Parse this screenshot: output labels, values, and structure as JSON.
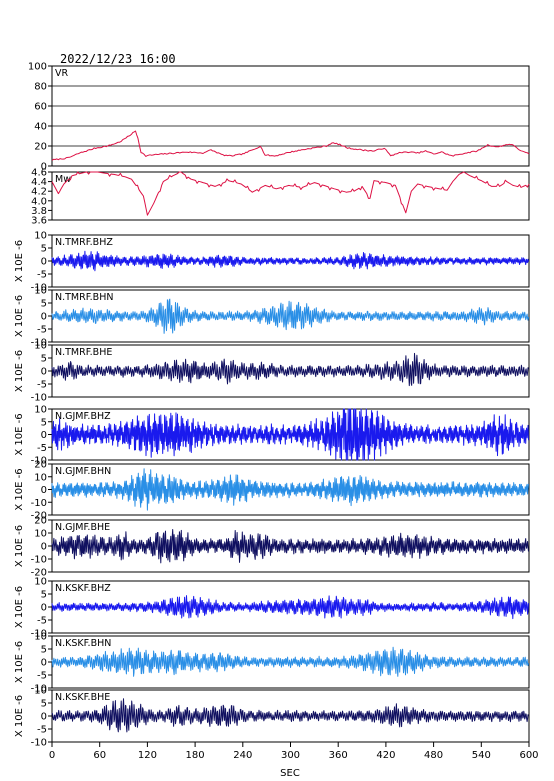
{
  "header": {
    "timestamp": "2022/12/23 16:00"
  },
  "colors": {
    "vr": "#dd1144",
    "mw": "#dd1144",
    "bhz": "#1a1aee",
    "bhn": "#2a8fe6",
    "bhe": "#101060",
    "axis": "#000000"
  },
  "chart_data": {
    "type": "line",
    "xlabel": "SEC",
    "xlim": [
      0,
      600
    ],
    "xticks": [
      0,
      60,
      120,
      180,
      240,
      300,
      360,
      420,
      480,
      540,
      600
    ],
    "panels": [
      {
        "label": "VR",
        "kind": "vr",
        "ylim": [
          0,
          100
        ],
        "yticks": [
          0,
          20,
          40,
          60,
          80,
          100
        ],
        "ylabel": "",
        "color": "vr",
        "points": [
          [
            0,
            6
          ],
          [
            20,
            8
          ],
          [
            35,
            13
          ],
          [
            55,
            18
          ],
          [
            70,
            20
          ],
          [
            85,
            24
          ],
          [
            95,
            29
          ],
          [
            100,
            32
          ],
          [
            105,
            35
          ],
          [
            108,
            28
          ],
          [
            112,
            14
          ],
          [
            118,
            10
          ],
          [
            125,
            11
          ],
          [
            140,
            12
          ],
          [
            155,
            13
          ],
          [
            170,
            14
          ],
          [
            190,
            13
          ],
          [
            200,
            16
          ],
          [
            215,
            11
          ],
          [
            225,
            10
          ],
          [
            240,
            12
          ],
          [
            255,
            17
          ],
          [
            262,
            20
          ],
          [
            268,
            11
          ],
          [
            280,
            10
          ],
          [
            300,
            14
          ],
          [
            320,
            17
          ],
          [
            345,
            20
          ],
          [
            352,
            23
          ],
          [
            360,
            22
          ],
          [
            372,
            18
          ],
          [
            390,
            16
          ],
          [
            405,
            15
          ],
          [
            418,
            18
          ],
          [
            426,
            10
          ],
          [
            435,
            13
          ],
          [
            448,
            14
          ],
          [
            460,
            13
          ],
          [
            470,
            15
          ],
          [
            480,
            12
          ],
          [
            490,
            14
          ],
          [
            503,
            10
          ],
          [
            520,
            13
          ],
          [
            535,
            15
          ],
          [
            548,
            21
          ],
          [
            560,
            19
          ],
          [
            575,
            22
          ],
          [
            582,
            20
          ],
          [
            590,
            15
          ],
          [
            600,
            12
          ]
        ]
      },
      {
        "label": "Mw",
        "kind": "mw",
        "ylim": [
          3.6,
          4.6
        ],
        "yticks": [
          3.6,
          3.8,
          4.0,
          4.2,
          4.4,
          4.6
        ],
        "ylabel": "",
        "color": "mw",
        "points": [
          [
            0,
            4.4
          ],
          [
            8,
            4.15
          ],
          [
            15,
            4.35
          ],
          [
            25,
            4.52
          ],
          [
            38,
            4.58
          ],
          [
            50,
            4.62
          ],
          [
            65,
            4.58
          ],
          [
            78,
            4.55
          ],
          [
            92,
            4.5
          ],
          [
            100,
            4.45
          ],
          [
            115,
            4.1
          ],
          [
            120,
            3.7
          ],
          [
            128,
            3.95
          ],
          [
            140,
            4.4
          ],
          [
            152,
            4.52
          ],
          [
            162,
            4.6
          ],
          [
            175,
            4.45
          ],
          [
            190,
            4.38
          ],
          [
            205,
            4.3
          ],
          [
            222,
            4.42
          ],
          [
            238,
            4.35
          ],
          [
            252,
            4.18
          ],
          [
            268,
            4.32
          ],
          [
            282,
            4.25
          ],
          [
            298,
            4.32
          ],
          [
            315,
            4.28
          ],
          [
            330,
            4.38
          ],
          [
            342,
            4.32
          ],
          [
            355,
            4.25
          ],
          [
            370,
            4.18
          ],
          [
            380,
            4.2
          ],
          [
            390,
            4.3
          ],
          [
            400,
            4.05
          ],
          [
            405,
            4.42
          ],
          [
            420,
            4.38
          ],
          [
            432,
            4.32
          ],
          [
            445,
            3.75
          ],
          [
            452,
            4.2
          ],
          [
            460,
            4.35
          ],
          [
            472,
            4.3
          ],
          [
            484,
            4.26
          ],
          [
            497,
            4.22
          ],
          [
            504,
            4.4
          ],
          [
            512,
            4.55
          ],
          [
            518,
            4.6
          ],
          [
            526,
            4.52
          ],
          [
            540,
            4.42
          ],
          [
            553,
            4.3
          ],
          [
            563,
            4.3
          ],
          [
            572,
            4.4
          ],
          [
            580,
            4.32
          ],
          [
            590,
            4.28
          ],
          [
            600,
            4.35
          ]
        ]
      },
      {
        "label": "N.TMRF.BHZ",
        "kind": "wave",
        "ylim": [
          -10,
          10
        ],
        "yticks": [
          -10,
          -5,
          0,
          5,
          10
        ],
        "ylabel": "X 10E -6",
        "color": "bhz",
        "amplitude": 2.0,
        "freq": 0.52,
        "seed": 11
      },
      {
        "label": "N.TMRF.BHN",
        "kind": "wave",
        "ylim": [
          -10,
          10
        ],
        "yticks": [
          -10,
          -5,
          0,
          5,
          10
        ],
        "ylabel": "X 10E -6",
        "color": "bhn",
        "amplitude": 2.6,
        "freq": 0.4,
        "seed": 23
      },
      {
        "label": "N.TMRF.BHE",
        "kind": "wave",
        "ylim": [
          -10,
          10
        ],
        "yticks": [
          -10,
          -5,
          0,
          5,
          10
        ],
        "ylabel": "X 10E -6",
        "color": "bhe",
        "amplitude": 3.2,
        "freq": 0.36,
        "seed": 37
      },
      {
        "label": "N.GJMF.BHZ",
        "kind": "wave",
        "ylim": [
          -10,
          10
        ],
        "yticks": [
          -10,
          -5,
          0,
          5,
          10
        ],
        "ylabel": "X 10E -6",
        "color": "bhz",
        "amplitude": 5.5,
        "freq": 0.62,
        "seed": 41
      },
      {
        "label": "N.GJMF.BHN",
        "kind": "wave",
        "ylim": [
          -20,
          20
        ],
        "yticks": [
          -20,
          -10,
          0,
          10,
          20
        ],
        "ylabel": "X 10E -6",
        "color": "bhn",
        "amplitude": 8.5,
        "freq": 0.56,
        "seed": 53
      },
      {
        "label": "N.GJMF.BHE",
        "kind": "wave",
        "ylim": [
          -20,
          20
        ],
        "yticks": [
          -20,
          -10,
          0,
          10,
          20
        ],
        "ylabel": "X 10E -6",
        "color": "bhe",
        "amplitude": 8.0,
        "freq": 0.44,
        "seed": 67
      },
      {
        "label": "N.KSKF.BHZ",
        "kind": "wave",
        "ylim": [
          -10,
          10
        ],
        "yticks": [
          -10,
          -5,
          0,
          5,
          10
        ],
        "ylabel": "X 10E -6",
        "color": "bhz",
        "amplitude": 2.4,
        "freq": 0.46,
        "seed": 71
      },
      {
        "label": "N.KSKF.BHN",
        "kind": "wave",
        "ylim": [
          -10,
          10
        ],
        "yticks": [
          -10,
          -5,
          0,
          5,
          10
        ],
        "ylabel": "X 10E -6",
        "color": "bhn",
        "amplitude": 2.8,
        "freq": 0.42,
        "seed": 83
      },
      {
        "label": "N.KSKF.BHE",
        "kind": "wave",
        "ylim": [
          -10,
          10
        ],
        "yticks": [
          -10,
          -5,
          0,
          5,
          10
        ],
        "ylabel": "X 10E -6",
        "color": "bhe",
        "amplitude": 3.0,
        "freq": 0.38,
        "seed": 97
      }
    ]
  }
}
